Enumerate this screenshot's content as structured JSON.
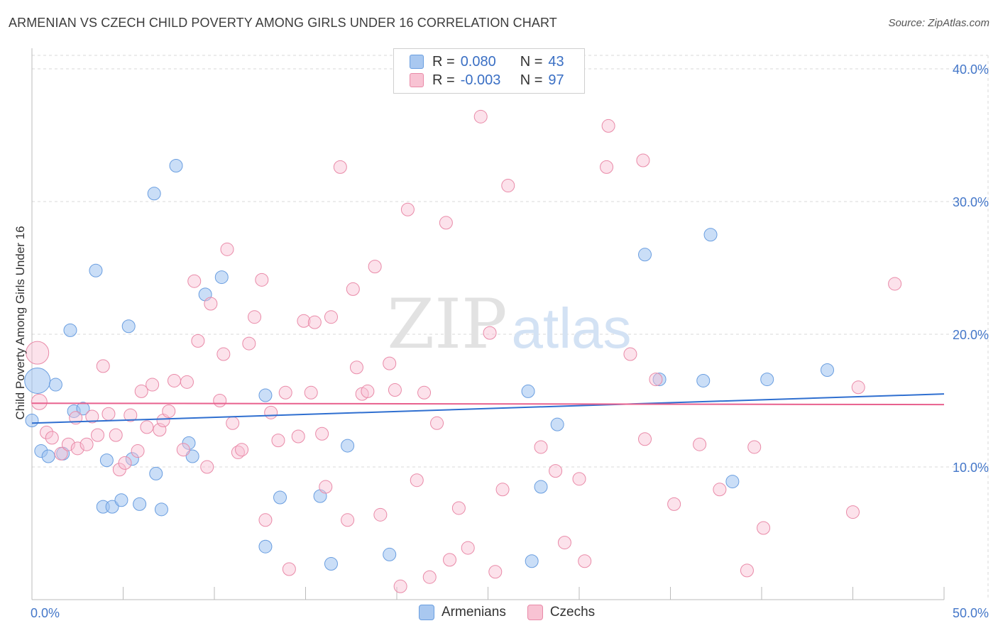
{
  "header": {
    "title": "ARMENIAN VS CZECH CHILD POVERTY AMONG GIRLS UNDER 16 CORRELATION CHART",
    "source": "Source: ZipAtlas.com"
  },
  "watermark": {
    "part1": "ZIP",
    "part2": "atlas"
  },
  "legend": {
    "rows": [
      {
        "r_label": "R =",
        "r_value": "0.080",
        "n_label": "N =",
        "n_value": "43",
        "color": "#a9c8f0",
        "border": "#6a9ee0"
      },
      {
        "r_label": "R =",
        "r_value": "-0.003",
        "n_label": "N =",
        "n_value": "97",
        "color": "#f8c3d3",
        "border": "#e98aa8"
      }
    ]
  },
  "bottom_legend": [
    {
      "label": "Armenians",
      "color": "#a9c8f0",
      "border": "#6a9ee0"
    },
    {
      "label": "Czechs",
      "color": "#f8c3d3",
      "border": "#e98aa8"
    }
  ],
  "colors": {
    "armenian_fill": "rgba(158,194,240,0.55)",
    "armenian_stroke": "#6a9ee0",
    "armenian_line": "#2f6fd0",
    "czech_fill": "rgba(248,190,210,0.45)",
    "czech_stroke": "#e98aa8",
    "czech_line": "#e8618e",
    "grid": "#d9d9d9"
  },
  "chart_data": {
    "type": "scatter",
    "title": "ARMENIAN VS CZECH CHILD POVERTY AMONG GIRLS UNDER 16 CORRELATION CHART",
    "xlabel": "",
    "ylabel": "Child Poverty Among Girls Under 16",
    "xlim": [
      0,
      50
    ],
    "ylim": [
      0,
      40
    ],
    "x_tick_labels": [
      "0.0%",
      "50.0%"
    ],
    "y_ticks": [
      10,
      20,
      30,
      40
    ],
    "y_tick_labels": [
      "10.0%",
      "20.0%",
      "30.0%",
      "40.0%"
    ],
    "grid": true,
    "legend_position": "top-center",
    "series": [
      {
        "name": "Armenians",
        "trend": {
          "x": [
            0,
            50
          ],
          "y": [
            13.3,
            15.5
          ]
        },
        "points": [
          [
            0.3,
            16.5,
            18
          ],
          [
            1.3,
            16.2,
            9
          ],
          [
            0.5,
            11.2,
            9
          ],
          [
            0.9,
            10.8,
            9
          ],
          [
            1.7,
            11.0,
            9
          ],
          [
            2.1,
            20.3,
            9
          ],
          [
            2.3,
            14.2,
            9
          ],
          [
            2.8,
            14.4,
            9
          ],
          [
            3.5,
            24.8,
            9
          ],
          [
            4.1,
            10.5,
            9
          ],
          [
            3.9,
            7.0,
            9
          ],
          [
            4.4,
            7.0,
            9
          ],
          [
            4.9,
            7.5,
            9
          ],
          [
            5.3,
            20.6,
            9
          ],
          [
            5.5,
            10.6,
            9
          ],
          [
            5.9,
            7.2,
            9
          ],
          [
            6.8,
            9.5,
            9
          ],
          [
            6.7,
            30.6,
            9
          ],
          [
            7.1,
            6.8,
            9
          ],
          [
            7.9,
            32.7,
            9
          ],
          [
            8.6,
            11.8,
            9
          ],
          [
            8.8,
            10.8,
            9
          ],
          [
            9.5,
            23.0,
            9
          ],
          [
            10.4,
            24.3,
            9
          ],
          [
            12.8,
            15.4,
            9
          ],
          [
            12.8,
            4.0,
            9
          ],
          [
            13.6,
            7.7,
            9
          ],
          [
            15.8,
            7.8,
            9
          ],
          [
            16.4,
            2.7,
            9
          ],
          [
            17.3,
            11.6,
            9
          ],
          [
            19.6,
            3.4,
            9
          ],
          [
            27.2,
            15.7,
            9
          ],
          [
            27.4,
            2.9,
            9
          ],
          [
            27.9,
            8.5,
            9
          ],
          [
            28.8,
            13.2,
            9
          ],
          [
            33.6,
            26.0,
            9
          ],
          [
            34.4,
            16.6,
            9
          ],
          [
            36.8,
            16.5,
            9
          ],
          [
            37.2,
            27.5,
            9
          ],
          [
            38.4,
            8.9,
            9
          ],
          [
            40.3,
            16.6,
            9
          ],
          [
            43.6,
            17.3,
            9
          ],
          [
            0.0,
            13.5,
            9
          ]
        ]
      },
      {
        "name": "Czechs",
        "trend": {
          "x": [
            0,
            50
          ],
          "y": [
            14.8,
            14.7
          ]
        },
        "points": [
          [
            0.3,
            18.6,
            16
          ],
          [
            0.4,
            14.9,
            11
          ],
          [
            0.8,
            12.6,
            9
          ],
          [
            1.1,
            12.2,
            9
          ],
          [
            1.6,
            11.0,
            9
          ],
          [
            2.0,
            11.7,
            9
          ],
          [
            2.4,
            13.7,
            9
          ],
          [
            2.5,
            11.4,
            9
          ],
          [
            3.0,
            11.7,
            9
          ],
          [
            3.3,
            13.8,
            9
          ],
          [
            3.6,
            12.4,
            9
          ],
          [
            3.9,
            17.6,
            9
          ],
          [
            4.2,
            14.0,
            9
          ],
          [
            4.6,
            12.4,
            9
          ],
          [
            4.8,
            9.8,
            9
          ],
          [
            5.1,
            10.3,
            9
          ],
          [
            5.4,
            13.9,
            9
          ],
          [
            5.8,
            11.2,
            9
          ],
          [
            6.0,
            15.7,
            9
          ],
          [
            6.3,
            13.0,
            9
          ],
          [
            6.6,
            16.2,
            9
          ],
          [
            7.0,
            12.8,
            9
          ],
          [
            7.2,
            13.5,
            9
          ],
          [
            7.5,
            14.2,
            9
          ],
          [
            7.8,
            16.5,
            9
          ],
          [
            8.3,
            11.3,
            9
          ],
          [
            8.5,
            16.4,
            9
          ],
          [
            8.9,
            24.0,
            9
          ],
          [
            9.1,
            19.5,
            9
          ],
          [
            9.6,
            10.0,
            9
          ],
          [
            9.8,
            22.3,
            9
          ],
          [
            10.3,
            15.0,
            9
          ],
          [
            10.5,
            18.5,
            9
          ],
          [
            10.7,
            26.4,
            9
          ],
          [
            11.0,
            13.3,
            9
          ],
          [
            11.3,
            11.1,
            9
          ],
          [
            11.5,
            11.3,
            9
          ],
          [
            11.9,
            19.3,
            9
          ],
          [
            12.2,
            21.3,
            9
          ],
          [
            12.6,
            24.1,
            9
          ],
          [
            12.8,
            6.0,
            9
          ],
          [
            13.1,
            14.1,
            9
          ],
          [
            13.5,
            12.0,
            9
          ],
          [
            13.9,
            15.6,
            9
          ],
          [
            14.1,
            2.3,
            9
          ],
          [
            14.6,
            12.3,
            9
          ],
          [
            14.9,
            21.0,
            9
          ],
          [
            15.3,
            15.6,
            9
          ],
          [
            15.5,
            20.9,
            9
          ],
          [
            15.9,
            12.5,
            9
          ],
          [
            16.1,
            8.5,
            9
          ],
          [
            16.4,
            21.3,
            9
          ],
          [
            16.9,
            32.6,
            9
          ],
          [
            17.3,
            6.0,
            9
          ],
          [
            17.6,
            23.4,
            9
          ],
          [
            17.8,
            17.5,
            9
          ],
          [
            18.1,
            15.5,
            9
          ],
          [
            18.4,
            15.7,
            9
          ],
          [
            18.8,
            25.1,
            9
          ],
          [
            19.1,
            6.4,
            9
          ],
          [
            19.6,
            17.8,
            9
          ],
          [
            19.9,
            15.8,
            9
          ],
          [
            20.2,
            1.0,
            9
          ],
          [
            20.6,
            29.4,
            9
          ],
          [
            21.1,
            9.0,
            9
          ],
          [
            21.5,
            15.6,
            9
          ],
          [
            21.8,
            1.7,
            9
          ],
          [
            22.2,
            13.3,
            9
          ],
          [
            22.7,
            28.4,
            9
          ],
          [
            22.9,
            3.0,
            9
          ],
          [
            23.4,
            6.9,
            9
          ],
          [
            23.9,
            3.9,
            9
          ],
          [
            24.6,
            36.4,
            9
          ],
          [
            25.1,
            20.1,
            9
          ],
          [
            25.4,
            2.1,
            9
          ],
          [
            25.8,
            8.3,
            9
          ],
          [
            26.1,
            31.2,
            9
          ],
          [
            27.9,
            11.5,
            9
          ],
          [
            28.7,
            9.7,
            9
          ],
          [
            29.2,
            4.3,
            9
          ],
          [
            30.0,
            9.1,
            9
          ],
          [
            30.3,
            2.9,
            9
          ],
          [
            31.5,
            32.6,
            9
          ],
          [
            31.6,
            35.7,
            9
          ],
          [
            32.8,
            18.5,
            9
          ],
          [
            33.5,
            33.1,
            9
          ],
          [
            33.6,
            12.1,
            9
          ],
          [
            34.2,
            16.6,
            9
          ],
          [
            35.2,
            7.2,
            9
          ],
          [
            36.6,
            11.7,
            9
          ],
          [
            37.7,
            8.3,
            9
          ],
          [
            39.2,
            2.2,
            9
          ],
          [
            39.6,
            11.5,
            9
          ],
          [
            40.1,
            5.4,
            9
          ],
          [
            45.0,
            6.6,
            9
          ],
          [
            45.3,
            16.0,
            9
          ],
          [
            47.3,
            23.8,
            9
          ]
        ]
      }
    ]
  }
}
